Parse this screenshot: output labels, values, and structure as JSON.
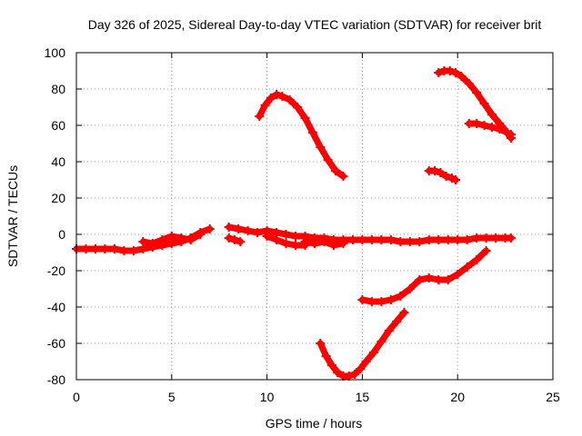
{
  "chart_data": {
    "type": "scatter",
    "title": "Day 326 of 2025, Sidereal Day-to-day VTEC variation (SDTVAR) for receiver brit",
    "xlabel": "GPS time / hours",
    "ylabel": "SDTVAR / TECUs",
    "xlim": [
      0,
      25
    ],
    "ylim": [
      -80,
      100
    ],
    "x_ticks": [
      0,
      5,
      10,
      15,
      20,
      25
    ],
    "y_ticks": [
      -80,
      -60,
      -40,
      -20,
      0,
      20,
      40,
      60,
      80,
      100
    ],
    "grid": true,
    "legend": "none",
    "color": "#ff0000",
    "series": [
      {
        "x": [
          0,
          0.5,
          1.0,
          1.5,
          2.0,
          2.5,
          3.0,
          3.5,
          4.0,
          4.5,
          5.0,
          5.5,
          6.0,
          6.5,
          7.0
        ],
        "y": [
          -8,
          -8,
          -8,
          -8,
          -8,
          -9,
          -9,
          -8,
          -7,
          -6,
          -5,
          -4,
          -2,
          1,
          3
        ]
      },
      {
        "x": [
          3.5,
          4.0,
          4.5,
          5.0,
          5.5,
          6.0,
          6.5
        ],
        "y": [
          -4,
          -5,
          -3,
          -1,
          -2,
          -3,
          0
        ]
      },
      {
        "x": [
          8.0,
          8.5,
          9.0,
          9.5,
          10.0,
          10.5,
          11.0,
          11.5,
          12.0,
          12.5,
          13.0,
          13.5,
          14.0,
          14.5,
          15.0,
          15.5,
          16.0,
          16.5,
          17.0,
          17.5,
          18.0,
          18.5,
          19.0,
          19.5,
          20.0,
          20.5,
          21.0,
          21.5,
          22.0,
          22.5,
          22.8
        ],
        "y": [
          4,
          3,
          2,
          1,
          2,
          1,
          0,
          -1,
          -1,
          -2,
          -2,
          -3,
          -3,
          -3,
          -3,
          -3,
          -3,
          -3,
          -4,
          -4,
          -4,
          -3,
          -3,
          -3,
          -3,
          -3,
          -2,
          -2,
          -2,
          -2,
          -2
        ]
      },
      {
        "x": [
          10.0,
          10.5,
          11.0,
          11.5,
          12.0
        ],
        "y": [
          -1,
          -3,
          -5,
          -6,
          -6
        ]
      },
      {
        "x": [
          12.0,
          12.5,
          13.0,
          13.5,
          14.0
        ],
        "y": [
          -4,
          -5,
          -4,
          -6,
          -5
        ]
      },
      {
        "x": [
          8.0,
          8.3,
          8.6
        ],
        "y": [
          -2,
          -3,
          -4
        ]
      },
      {
        "x": [
          9.6,
          9.9,
          10.2,
          10.5,
          10.8,
          11.2,
          11.6,
          12.0,
          12.4,
          12.8,
          13.2,
          13.6,
          14.0
        ],
        "y": [
          65,
          71,
          75,
          77,
          76,
          74,
          70,
          64,
          56,
          48,
          41,
          35,
          32
        ]
      },
      {
        "x": [
          19.0,
          19.3,
          19.6,
          19.9,
          20.2,
          20.6,
          21.0,
          21.4,
          21.8,
          22.2,
          22.6,
          22.8
        ],
        "y": [
          89,
          90,
          90,
          89,
          87,
          83,
          78,
          72,
          66,
          61,
          56,
          53
        ]
      },
      {
        "x": [
          20.6,
          21.0,
          21.4,
          21.8,
          22.2,
          22.6,
          22.8
        ],
        "y": [
          61,
          61,
          60,
          59,
          58,
          56,
          55
        ]
      },
      {
        "x": [
          18.5,
          18.8,
          19.1,
          19.4,
          19.7,
          19.9
        ],
        "y": [
          35,
          35,
          34,
          32,
          31,
          30
        ]
      },
      {
        "x": [
          15.0,
          15.5,
          16.0,
          16.5,
          17.0,
          17.5,
          18.0,
          18.5,
          19.0,
          19.5,
          20.0,
          20.5,
          21.0,
          21.5
        ],
        "y": [
          -36,
          -37,
          -37,
          -36,
          -34,
          -30,
          -25,
          -24,
          -25,
          -25,
          -22,
          -18,
          -14,
          -9
        ]
      },
      {
        "x": [
          12.8,
          13.1,
          13.4,
          13.7,
          14.0,
          14.3,
          14.6,
          14.9,
          15.2,
          15.6,
          16.0,
          16.4,
          16.8,
          17.2
        ],
        "y": [
          -60,
          -67,
          -72,
          -76,
          -78,
          -78,
          -77,
          -74,
          -70,
          -65,
          -59,
          -53,
          -48,
          -43
        ]
      }
    ]
  }
}
